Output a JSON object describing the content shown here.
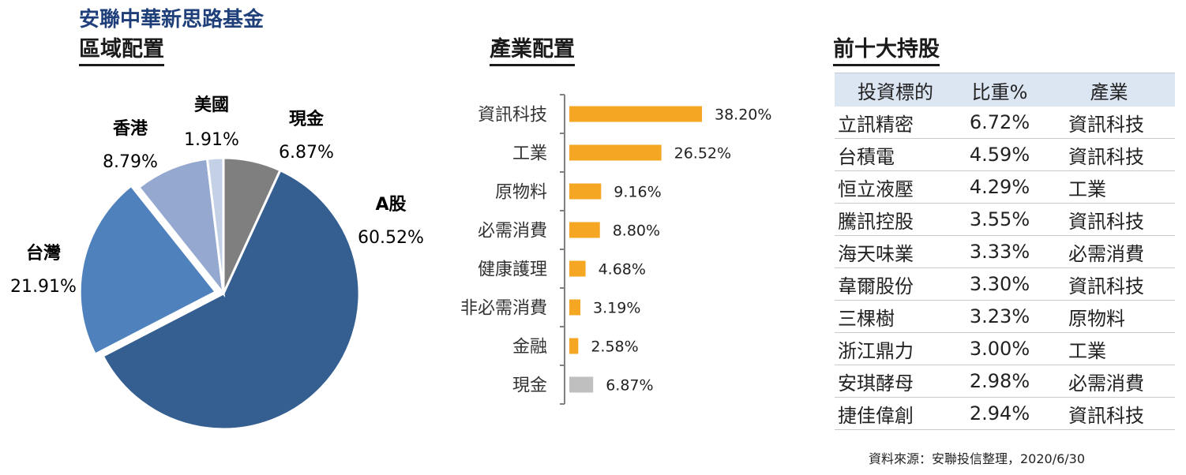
{
  "fund_title": "安聯中華新思路基金",
  "sections": {
    "region": "區域配置",
    "industry": "產業配置",
    "top10": "前十大持股"
  },
  "chart_data": [
    {
      "type": "pie",
      "title": "區域配置",
      "slices": [
        {
          "label": "A股",
          "value": 60.52,
          "display": "60.52%",
          "color": "#355f91"
        },
        {
          "label": "台灣",
          "value": 21.91,
          "display": "21.91%",
          "color": "#4f81bd"
        },
        {
          "label": "香港",
          "value": 8.79,
          "display": "8.79%",
          "color": "#95a9d0"
        },
        {
          "label": "美國",
          "value": 1.91,
          "display": "1.91%",
          "color": "#c4d0e6"
        },
        {
          "label": "現金",
          "value": 6.87,
          "display": "6.87%",
          "color": "#7f7f7f"
        }
      ]
    },
    {
      "type": "bar",
      "orientation": "horizontal",
      "title": "產業配置",
      "categories": [
        "資訊科技",
        "工業",
        "原物料",
        "必需消費",
        "健康護理",
        "非必需消費",
        "金融",
        "現金"
      ],
      "values": [
        38.2,
        26.52,
        9.16,
        8.8,
        4.68,
        3.19,
        2.58,
        6.87
      ],
      "value_labels": [
        "38.20%",
        "26.52%",
        "9.16%",
        "8.80%",
        "4.68%",
        "3.19%",
        "2.58%",
        "6.87%"
      ],
      "colors": [
        "#f5a623",
        "#f5a623",
        "#f5a623",
        "#f5a623",
        "#f5a623",
        "#f5a623",
        "#f5a623",
        "#bfbfbf"
      ]
    },
    {
      "type": "table",
      "title": "前十大持股",
      "columns": [
        "投資標的",
        "比重%",
        "產業"
      ],
      "rows": [
        [
          "立訊精密",
          "6.72%",
          "資訊科技"
        ],
        [
          "台積電",
          "4.59%",
          "資訊科技"
        ],
        [
          "恒立液壓",
          "4.29%",
          "工業"
        ],
        [
          "騰訊控股",
          "3.55%",
          "資訊科技"
        ],
        [
          "海天味業",
          "3.33%",
          "必需消費"
        ],
        [
          "韋爾股份",
          "3.30%",
          "資訊科技"
        ],
        [
          "三棵樹",
          "3.23%",
          "原物料"
        ],
        [
          "浙江鼎力",
          "3.00%",
          "工業"
        ],
        [
          "安琪酵母",
          "2.98%",
          "必需消費"
        ],
        [
          "捷佳偉創",
          "2.94%",
          "資訊科技"
        ]
      ]
    }
  ],
  "source_note": "資料來源：安聯投信整理，2020/6/30"
}
